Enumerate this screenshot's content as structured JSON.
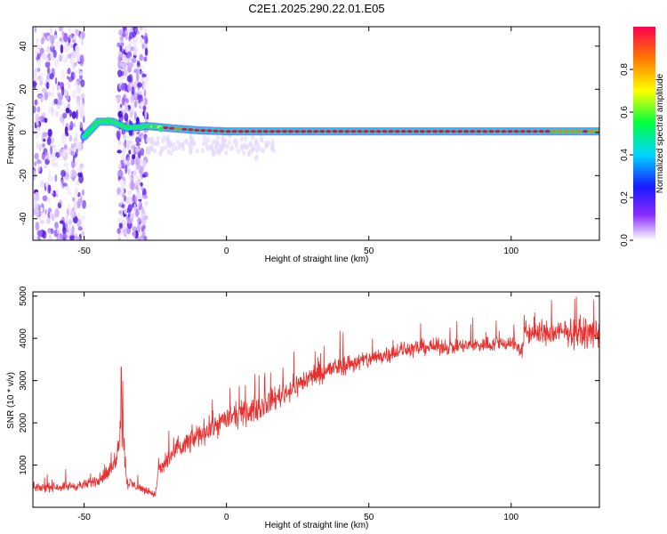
{
  "title": "C2E1.2025.290.22.01.E05",
  "colors": {
    "snr_line": "#e8302f",
    "track_low": "#3ad5ff",
    "track_high": "#e8302f",
    "noise": "#6a2bff"
  },
  "chart_data": [
    {
      "type": "heatmap",
      "name": "spectrogram",
      "xlabel": "Height of straight line (km)",
      "ylabel": "Frequency (Hz)",
      "xlim": [
        -68,
        131
      ],
      "ylim": [
        -50,
        49
      ],
      "x_ticks": [
        -50,
        0,
        50,
        100
      ],
      "x_tick_labels": [
        "-50",
        "0",
        "50",
        "100"
      ],
      "y_ticks": [
        -40,
        -20,
        0,
        20,
        40
      ],
      "y_tick_labels": [
        "-40",
        "-20",
        "0",
        "20",
        "40"
      ],
      "noise_bands_km": [
        [
          -68,
          -50
        ],
        [
          -38,
          -28
        ]
      ],
      "track": [
        {
          "x": -50,
          "freq": -2,
          "amp": 0.25
        },
        {
          "x": -45,
          "freq": 5,
          "amp": 0.45
        },
        {
          "x": -40,
          "freq": 5,
          "amp": 0.45
        },
        {
          "x": -35,
          "freq": 2,
          "amp": 0.4
        },
        {
          "x": -28,
          "freq": 3,
          "amp": 0.5
        },
        {
          "x": -20,
          "freq": 2,
          "amp": 0.85
        },
        {
          "x": -10,
          "freq": 1,
          "amp": 0.9
        },
        {
          "x": 0,
          "freq": 0.5,
          "amp": 0.95
        },
        {
          "x": 20,
          "freq": 0.5,
          "amp": 0.95
        },
        {
          "x": 60,
          "freq": 0.5,
          "amp": 0.95
        },
        {
          "x": 100,
          "freq": 0.5,
          "amp": 0.92
        },
        {
          "x": 131,
          "freq": 0.5,
          "amp": 0.85
        }
      ],
      "colorbar": {
        "label": "Normalized spectral amplitude",
        "range": [
          0,
          1
        ],
        "ticks": [
          0.0,
          0.2,
          0.4,
          0.6,
          0.8
        ],
        "tick_labels": [
          "0.0",
          "0.2",
          "0.4",
          "0.6",
          "0.8"
        ]
      }
    },
    {
      "type": "line",
      "name": "snr",
      "xlabel": "Height of straight line (km)",
      "ylabel": "SNR (10 * v/v)",
      "xlim": [
        -68,
        131
      ],
      "ylim": [
        0,
        5100
      ],
      "x_ticks": [
        -50,
        0,
        50,
        100
      ],
      "x_tick_labels": [
        "-50",
        "0",
        "50",
        "100"
      ],
      "y_ticks": [
        1000,
        2000,
        3000,
        4000,
        5000
      ],
      "y_tick_labels": [
        "1000",
        "2000",
        "3000",
        "4000",
        "5000"
      ],
      "envelope": {
        "x": [
          -68,
          -60,
          -50,
          -45,
          -40,
          -38,
          -37,
          -35,
          -30,
          -25,
          -24,
          -20,
          -10,
          0,
          10,
          20,
          30,
          40,
          50,
          60,
          70,
          80,
          90,
          100,
          104,
          105,
          110,
          120,
          131
        ],
        "mean": [
          450,
          480,
          520,
          650,
          900,
          1500,
          2300,
          600,
          450,
          300,
          800,
          1200,
          1700,
          2100,
          2300,
          2700,
          3100,
          3350,
          3500,
          3700,
          3800,
          3800,
          3850,
          3900,
          3700,
          4150,
          4100,
          4150,
          4100
        ],
        "spread": [
          150,
          160,
          180,
          220,
          350,
          600,
          900,
          250,
          150,
          120,
          300,
          420,
          450,
          450,
          450,
          450,
          420,
          380,
          350,
          320,
          300,
          280,
          280,
          300,
          300,
          480,
          480,
          500,
          520
        ]
      },
      "peak": {
        "x": -37,
        "value": 3320
      }
    }
  ]
}
